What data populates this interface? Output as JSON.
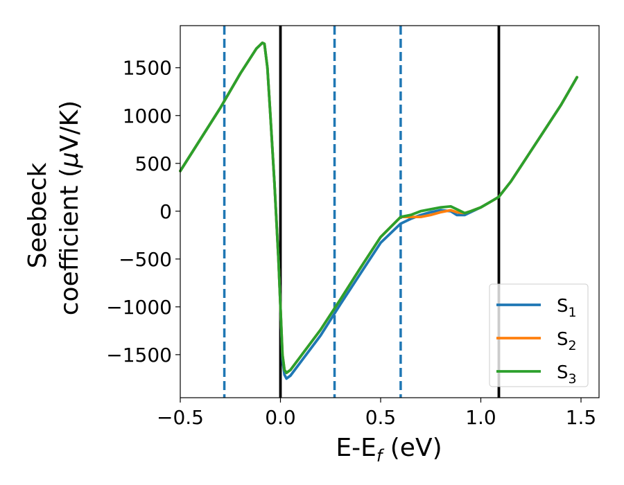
{
  "chart_data": {
    "type": "line",
    "xlabel": {
      "base": "E-E",
      "sub": "f",
      "unit": " (eV)"
    },
    "ylabel": {
      "line1": "Seebeck",
      "line2_pre": "coefficient  (",
      "mu": "μ",
      "line2_post": "V/K)"
    },
    "xlim": [
      -0.5,
      1.59
    ],
    "ylim": [
      -1950,
      1940
    ],
    "x_ticks": [
      -0.5,
      0.0,
      0.5,
      1.0,
      1.5
    ],
    "x_tick_labels": [
      "−0.5",
      "0.0",
      "0.5",
      "1.0",
      "1.5"
    ],
    "y_ticks": [
      -1500,
      -1000,
      -500,
      0,
      500,
      1000,
      1500
    ],
    "y_tick_labels": [
      "−1500",
      "−1000",
      "−500",
      "0",
      "500",
      "1000",
      "1500"
    ],
    "grid": false,
    "legend_position": "bottom-right",
    "vlines": [
      {
        "x": -0.28,
        "style": "dashed",
        "color": "#1f77b4"
      },
      {
        "x": 0.0,
        "style": "solid",
        "color": "#000000"
      },
      {
        "x": 0.27,
        "style": "dashed",
        "color": "#1f77b4"
      },
      {
        "x": 0.6,
        "style": "dashed",
        "color": "#1f77b4"
      },
      {
        "x": 1.09,
        "style": "solid",
        "color": "#000000"
      }
    ],
    "series": [
      {
        "name": "S",
        "sub": "1",
        "color": "#1f77b4",
        "x": [
          -0.5,
          -0.3,
          -0.2,
          -0.12,
          -0.09,
          -0.08,
          -0.065,
          -0.05,
          -0.03,
          -0.01,
          0.0,
          0.01,
          0.02,
          0.03,
          0.05,
          0.1,
          0.2,
          0.3,
          0.4,
          0.5,
          0.6,
          0.65,
          0.7,
          0.75,
          0.8,
          0.85,
          0.88,
          0.92,
          0.95,
          1.0,
          1.05,
          1.09,
          1.15,
          1.2,
          1.3,
          1.4,
          1.48
        ],
        "y": [
          420,
          1080,
          1440,
          1700,
          1760,
          1750,
          1500,
          1000,
          300,
          -500,
          -1000,
          -1550,
          -1710,
          -1750,
          -1720,
          -1580,
          -1300,
          -970,
          -650,
          -330,
          -130,
          -80,
          -40,
          -10,
          10,
          0,
          -40,
          -40,
          -10,
          40,
          100,
          150,
          310,
          470,
          790,
          1110,
          1400
        ]
      },
      {
        "name": "S",
        "sub": "2",
        "color": "#ff7f0e",
        "x": [
          -0.5,
          -0.3,
          -0.2,
          -0.12,
          -0.09,
          -0.08,
          -0.065,
          -0.05,
          -0.03,
          -0.01,
          0.0,
          0.01,
          0.02,
          0.03,
          0.05,
          0.1,
          0.2,
          0.3,
          0.4,
          0.5,
          0.6,
          0.65,
          0.7,
          0.75,
          0.8,
          0.85,
          0.88,
          0.92,
          0.95,
          1.0,
          1.05,
          1.09,
          1.15,
          1.2,
          1.3,
          1.4,
          1.48
        ],
        "y": [
          420,
          1080,
          1440,
          1700,
          1760,
          1750,
          1500,
          1000,
          300,
          -500,
          -1000,
          -1500,
          -1660,
          -1690,
          -1660,
          -1520,
          -1240,
          -920,
          -590,
          -270,
          -60,
          -60,
          -60,
          -40,
          -10,
          10,
          -10,
          -20,
          0,
          40,
          100,
          150,
          310,
          470,
          790,
          1110,
          1400
        ]
      },
      {
        "name": "S",
        "sub": "3",
        "color": "#2ca02c",
        "x": [
          -0.5,
          -0.3,
          -0.2,
          -0.12,
          -0.09,
          -0.08,
          -0.065,
          -0.05,
          -0.03,
          -0.01,
          0.0,
          0.01,
          0.02,
          0.03,
          0.05,
          0.1,
          0.2,
          0.3,
          0.4,
          0.5,
          0.6,
          0.65,
          0.7,
          0.75,
          0.8,
          0.85,
          0.88,
          0.92,
          0.95,
          1.0,
          1.05,
          1.09,
          1.15,
          1.2,
          1.3,
          1.4,
          1.48
        ],
        "y": [
          420,
          1080,
          1440,
          1700,
          1760,
          1750,
          1500,
          1000,
          300,
          -500,
          -1000,
          -1500,
          -1660,
          -1690,
          -1660,
          -1520,
          -1240,
          -920,
          -590,
          -270,
          -60,
          -40,
          0,
          20,
          40,
          50,
          20,
          -20,
          0,
          40,
          100,
          150,
          310,
          470,
          790,
          1110,
          1400
        ]
      }
    ]
  }
}
